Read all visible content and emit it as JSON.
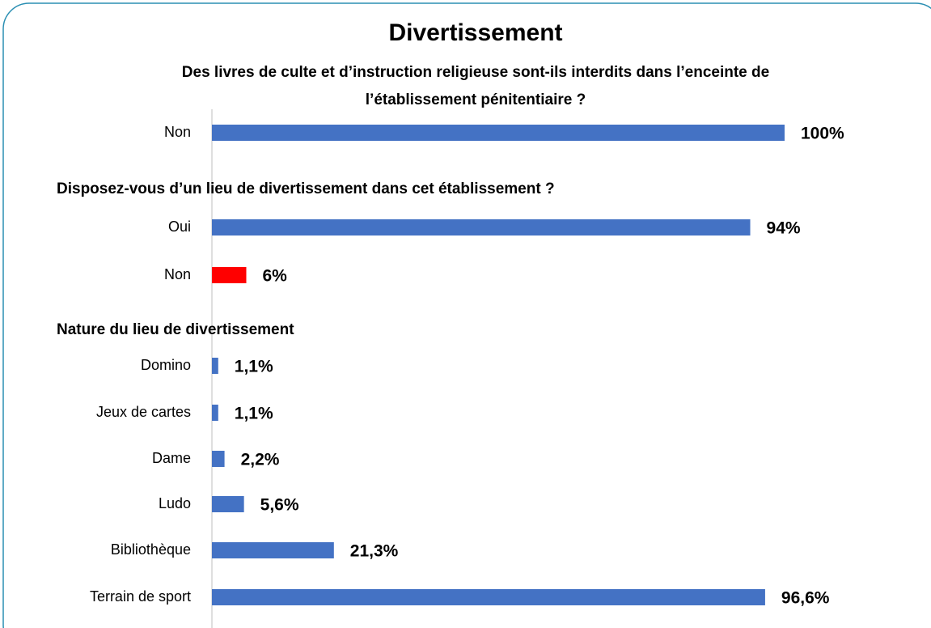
{
  "chart_data": {
    "type": "bar",
    "title": "Divertissement",
    "xlim": [
      0,
      100
    ],
    "sections": [
      {
        "heading": [
          "Des livres de culte et d’instruction religieuse sont-ils interdits dans l’enceinte de",
          "l’établissement pénitentiaire ?"
        ],
        "categories": [
          "Non"
        ],
        "values": [
          100
        ],
        "value_labels": [
          "100%"
        ],
        "colors": [
          "#4472c4"
        ]
      },
      {
        "heading": [
          "Disposez-vous d’un lieu de divertissement dans cet établissement ?"
        ],
        "categories": [
          "Oui",
          "Non"
        ],
        "values": [
          94,
          6
        ],
        "value_labels": [
          "94%",
          "6%"
        ],
        "colors": [
          "#4472c4",
          "#ff0000"
        ]
      },
      {
        "heading": [
          "Nature du lieu de divertissement"
        ],
        "categories": [
          "Domino",
          "Jeux de cartes",
          "Dame",
          "Ludo",
          "Bibliothèque",
          "Terrain de sport"
        ],
        "values": [
          1.1,
          1.1,
          2.2,
          5.6,
          21.3,
          96.6
        ],
        "value_labels": [
          "1,1%",
          "1,1%",
          "2,2%",
          "5,6%",
          "21,3%",
          "96,6%"
        ],
        "colors": [
          "#4472c4",
          "#4472c4",
          "#4472c4",
          "#4472c4",
          "#4472c4",
          "#4472c4"
        ]
      }
    ]
  }
}
